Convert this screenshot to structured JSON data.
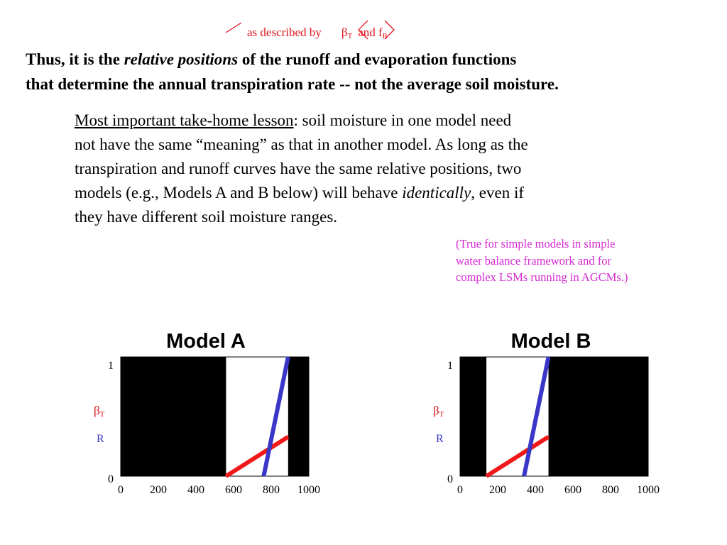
{
  "annotation": {
    "prefix": "as described by",
    "beta_symbol": "β",
    "beta_sub": "T",
    "and_text": "and f",
    "f_sub": "R"
  },
  "headline": {
    "line1_start": "Thus, it is the ",
    "line1_em": "relative positions",
    "line1_end": " of the runoff and evaporation functions",
    "line2": "that determine the annual transpiration rate -- not the average soil moisture."
  },
  "lesson": {
    "label": "Most important take-home lesson",
    "line1_rest": ": soil moisture in one model need",
    "line2": "not have the same “meaning” as that in another model.  As long as the",
    "line3": "transpiration and runoff curves have the same relative positions, two",
    "line4_start": "models (e.g., Models A and B below) will behave ",
    "line4_em": "identically",
    "line4_end": ", even if",
    "line5": "they have different soil moisture ranges."
  },
  "note": {
    "line1": "(True for simple models in simple",
    "line2": "water balance framework and for",
    "line3": "complex LSMs running in AGCMs.)"
  },
  "colors": {
    "annotation": "#e0141b",
    "note": "#d42ad0",
    "beta_label": "#e0141b",
    "r_label": "#3a37c8",
    "beta_line": "#f01818",
    "r_line": "#3a37c8",
    "mask": "#000000"
  },
  "chart_data": [
    {
      "type": "line",
      "title": "Model A",
      "xlim": [
        0,
        1000
      ],
      "ylim": [
        0,
        1
      ],
      "x_ticks": [
        0,
        200,
        400,
        600,
        800,
        1000
      ],
      "y_ticks": [
        0,
        1
      ],
      "y_labels": {
        "beta": "β",
        "beta_sub": "T",
        "r": "R"
      },
      "black_regions": [
        [
          0,
          560
        ],
        [
          890,
          1000
        ]
      ],
      "series": [
        {
          "key": "beta",
          "points": [
            [
              560,
              0
            ],
            [
              890,
              0.33
            ]
          ]
        },
        {
          "key": "r",
          "points": [
            [
              760,
              0
            ],
            [
              890,
              1.0
            ]
          ]
        }
      ]
    },
    {
      "type": "line",
      "title": "Model B",
      "xlim": [
        0,
        1000
      ],
      "ylim": [
        0,
        1
      ],
      "x_ticks": [
        0,
        200,
        400,
        600,
        800,
        1000
      ],
      "y_ticks": [
        0,
        1
      ],
      "y_labels": {
        "beta": "β",
        "beta_sub": "T",
        "r": "R"
      },
      "black_regions": [
        [
          0,
          140
        ],
        [
          470,
          1000
        ]
      ],
      "series": [
        {
          "key": "beta",
          "points": [
            [
              140,
              0
            ],
            [
              470,
              0.33
            ]
          ]
        },
        {
          "key": "r",
          "points": [
            [
              340,
              0
            ],
            [
              470,
              1.0
            ]
          ]
        }
      ]
    }
  ]
}
